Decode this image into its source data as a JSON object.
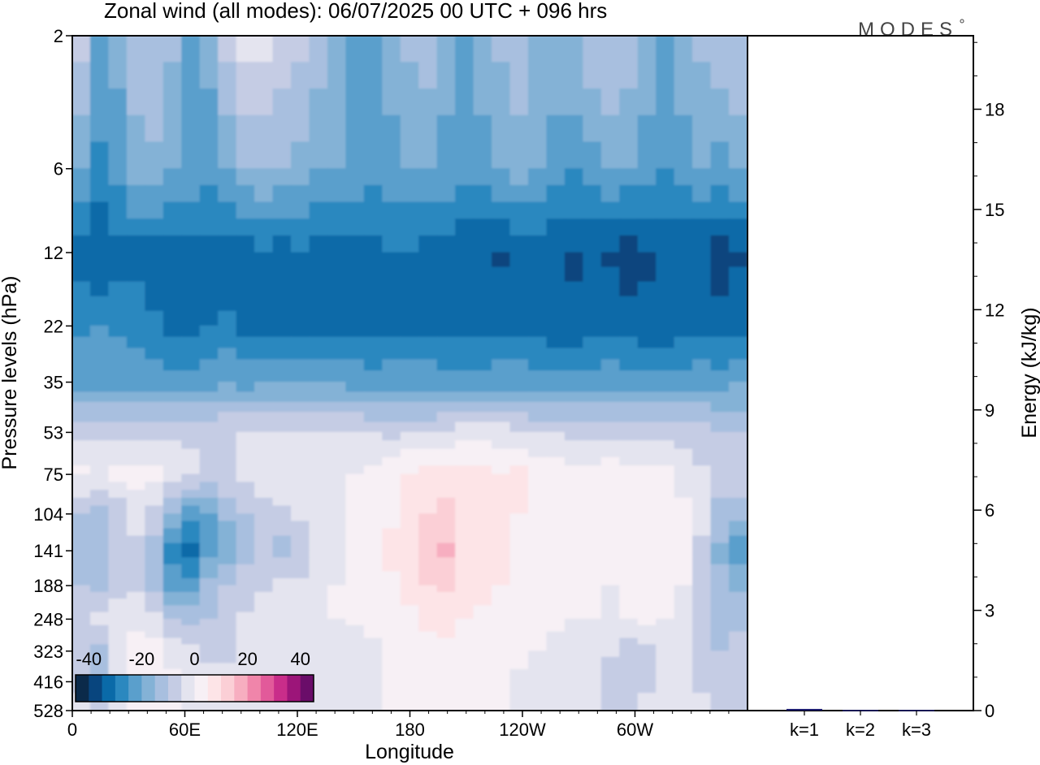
{
  "chart_data": [
    {
      "type": "heatmap",
      "title": "Zonal wind (all modes):  06/07/2025  00 UTC  + 096 hrs",
      "xlabel": "Longitude",
      "ylabel": "Pressure levels (hPa)",
      "x_ticks": [
        "0",
        "60E",
        "120E",
        "180",
        "120W",
        "60W"
      ],
      "x_tick_degrees": [
        0,
        60,
        120,
        180,
        240,
        300
      ],
      "xlim": [
        0,
        360
      ],
      "y_ticks": [
        "2",
        "6",
        "12",
        "22",
        "35",
        "53",
        "75",
        "104",
        "141",
        "188",
        "248",
        "323",
        "416",
        "528"
      ],
      "y_scale": "log",
      "ylim": [
        2,
        528
      ],
      "colorbar": {
        "tick_labels": [
          "-40",
          "-20",
          "0",
          "20",
          "40"
        ],
        "bounds": [
          -45,
          -40,
          -35,
          -30,
          -25,
          -20,
          -15,
          -10,
          -5,
          0,
          5,
          10,
          15,
          20,
          25,
          30,
          35,
          40,
          45
        ],
        "colors": [
          "#0b2a4a",
          "#08457e",
          "#0a6aa8",
          "#2b88bf",
          "#5a9fcc",
          "#84b2d6",
          "#a8bfdf",
          "#c5cce4",
          "#e4e4ef",
          "#f7f0f5",
          "#fde4e7",
          "#fbcfd6",
          "#f7aec0",
          "#f085aa",
          "#e25a9a",
          "#c92d8a",
          "#9c1579",
          "#6a0d69"
        ]
      },
      "wind_bands": [
        {
          "pressure": 2,
          "values": [
            -8,
            -22,
            -18,
            -12,
            -10,
            -14,
            -20,
            -18,
            -6,
            -2,
            -4,
            -6,
            -8,
            -12,
            -16,
            -24,
            -20,
            -18,
            -14,
            -12,
            -16,
            -20,
            -18,
            -14,
            -12,
            -16,
            -18,
            -16,
            -12,
            -10,
            -12,
            -16,
            -20,
            -18,
            -14,
            -12,
            -10
          ]
        },
        {
          "pressure": 6,
          "values": [
            -20,
            -26,
            -24,
            -18,
            -16,
            -20,
            -22,
            -24,
            -20,
            -16,
            -14,
            -16,
            -18,
            -20,
            -20,
            -22,
            -24,
            -22,
            -20,
            -20,
            -22,
            -24,
            -22,
            -20,
            -18,
            -20,
            -22,
            -24,
            -22,
            -20,
            -20,
            -22,
            -24,
            -22,
            -20,
            -22,
            -20
          ]
        },
        {
          "pressure": 12,
          "values": [
            -33,
            -36,
            -32,
            -32,
            -34,
            -33,
            -32,
            -32,
            -33,
            -32,
            -31,
            -32,
            -31,
            -32,
            -32,
            -31,
            -31,
            -30,
            -31,
            -32,
            -32,
            -34,
            -35,
            -36,
            -34,
            -34,
            -35,
            -36,
            -34,
            -36,
            -38,
            -36,
            -35,
            -34,
            -35,
            -38,
            -36
          ]
        },
        {
          "pressure": 22,
          "values": [
            -26,
            -25,
            -26,
            -27,
            -29,
            -31,
            -31,
            -30,
            -29,
            -31,
            -32,
            -33,
            -33,
            -32,
            -31,
            -32,
            -33,
            -32,
            -31,
            -31,
            -32,
            -33,
            -33,
            -32,
            -32,
            -33,
            -34,
            -34,
            -33,
            -32,
            -33,
            -34,
            -35,
            -33,
            -32,
            -33,
            -32
          ]
        },
        {
          "pressure": 35,
          "values": [
            -22,
            -22,
            -22,
            -22,
            -22,
            -23,
            -23,
            -22,
            -21,
            -22,
            -21,
            -21,
            -20,
            -20,
            -21,
            -22,
            -22,
            -22,
            -22,
            -22,
            -23,
            -23,
            -22,
            -22,
            -22,
            -23,
            -23,
            -22,
            -22,
            -22,
            -23,
            -23,
            -22,
            -22,
            -22,
            -22,
            -21
          ]
        },
        {
          "pressure": 53,
          "values": [
            -6,
            -6,
            -6,
            -7,
            -7,
            -6,
            -6,
            -6,
            -5,
            -4,
            -4,
            -4,
            -5,
            -5,
            -4,
            -4,
            -5,
            -6,
            -6,
            -5,
            -4,
            -3,
            -3,
            -3,
            -4,
            -5,
            -5,
            -6,
            -7,
            -6,
            -6,
            -6,
            -7,
            -8,
            -8,
            -9,
            -10
          ]
        },
        {
          "pressure": 75,
          "values": [
            1,
            -1,
            1,
            2,
            1,
            -1,
            -4,
            -6,
            -6,
            -4,
            -2,
            0,
            0,
            0,
            -1,
            0,
            1,
            3,
            6,
            7,
            8,
            8,
            7,
            5,
            6,
            4,
            3,
            1,
            1,
            3,
            2,
            2,
            1,
            -2,
            -4,
            -6,
            -6
          ]
        },
        {
          "pressure": 104,
          "values": [
            -10,
            -12,
            -8,
            -4,
            -6,
            -16,
            -22,
            -20,
            -14,
            -10,
            -8,
            -6,
            -4,
            -2,
            -1,
            0,
            2,
            4,
            7,
            10,
            11,
            9,
            7,
            6,
            5,
            3,
            2,
            2,
            1,
            2,
            3,
            4,
            3,
            1,
            -4,
            -12,
            -14
          ]
        },
        {
          "pressure": 141,
          "values": [
            -14,
            -14,
            -10,
            -6,
            -14,
            -28,
            -33,
            -22,
            -18,
            -12,
            -10,
            -12,
            -8,
            -4,
            -2,
            1,
            3,
            6,
            10,
            14,
            16,
            10,
            7,
            5,
            4,
            3,
            1,
            2,
            3,
            1,
            3,
            5,
            4,
            1,
            -6,
            -16,
            -24
          ]
        },
        {
          "pressure": 188,
          "values": [
            -10,
            -11,
            -8,
            -6,
            -12,
            -22,
            -22,
            -14,
            -10,
            -8,
            -6,
            -4,
            -4,
            -2,
            0,
            1,
            2,
            4,
            7,
            10,
            11,
            8,
            6,
            5,
            4,
            3,
            1,
            1,
            1,
            0,
            2,
            3,
            2,
            0,
            -6,
            -14,
            -16
          ]
        },
        {
          "pressure": 248,
          "values": [
            -6,
            -4,
            -2,
            -1,
            -4,
            -10,
            -12,
            -10,
            -7,
            -4,
            -2,
            -1,
            -1,
            -2,
            0,
            1,
            2,
            3,
            4,
            6,
            7,
            5,
            4,
            3,
            3,
            2,
            1,
            0,
            0,
            -1,
            0,
            1,
            0,
            -2,
            -6,
            -12,
            -12
          ]
        },
        {
          "pressure": 323,
          "values": [
            -8,
            -12,
            -4,
            1,
            2,
            -2,
            -4,
            -6,
            -6,
            -4,
            -2,
            -1,
            -1,
            -2,
            -4,
            -3,
            -1,
            1,
            2,
            3,
            4,
            3,
            2,
            1,
            1,
            0,
            -2,
            -1,
            -2,
            -4,
            -8,
            -6,
            -2,
            -4,
            -6,
            -10,
            -8
          ]
        },
        {
          "pressure": 416,
          "values": [
            -6,
            -10,
            -4,
            1,
            3,
            1,
            -2,
            -3,
            -3,
            -2,
            -1,
            -1,
            -2,
            -4,
            -5,
            -4,
            -2,
            0,
            1,
            2,
            3,
            2,
            1,
            0,
            -1,
            -2,
            -3,
            -2,
            -4,
            -8,
            -10,
            -6,
            -2,
            -4,
            -6,
            -8,
            -8
          ]
        },
        {
          "pressure": 528,
          "values": [
            -4,
            -8,
            -2,
            1,
            2,
            1,
            -1,
            -2,
            -2,
            -1,
            0,
            -1,
            -2,
            -3,
            -4,
            -2,
            -1,
            0,
            1,
            2,
            3,
            2,
            1,
            0,
            -1,
            -2,
            -2,
            -2,
            -4,
            -6,
            -6,
            -4,
            -2,
            -3,
            -4,
            -6,
            -6
          ]
        }
      ]
    },
    {
      "type": "bar",
      "categories": [
        "k=1",
        "k=2",
        "k=3"
      ],
      "values": [
        0.05,
        0.02,
        0.02
      ],
      "ylabel": "Energy (kJ/kg)",
      "ylim": [
        0,
        20.2
      ],
      "y_ticks": [
        "0",
        "3",
        "6",
        "9",
        "12",
        "15",
        "18"
      ],
      "bar_color": "#1a1a6e"
    }
  ],
  "brand": "MODES"
}
